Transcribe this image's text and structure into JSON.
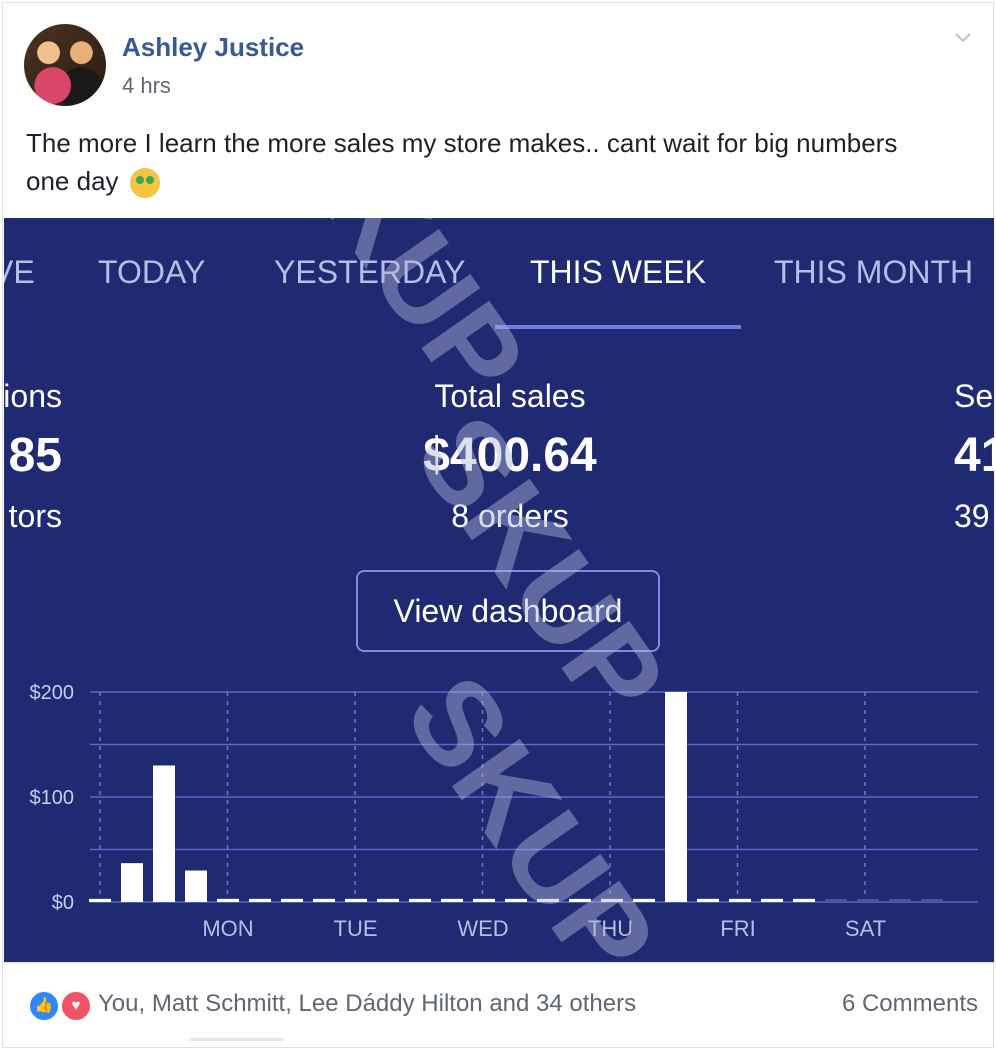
{
  "post": {
    "author": "Ashley Justice",
    "time": "4 hrs",
    "text": "The more I learn the more sales my store makes.. cant wait for big numbers one day",
    "emoji": "money-mouth-face-emoji"
  },
  "screenshot": {
    "tabs": [
      {
        "label": "VE",
        "active": false
      },
      {
        "label": "TODAY",
        "active": false
      },
      {
        "label": "YESTERDAY",
        "active": false
      },
      {
        "label": "THIS WEEK",
        "active": true
      },
      {
        "label": "THIS MONTH",
        "active": false
      }
    ],
    "metrics": {
      "left": {
        "label": "ions",
        "value": "85",
        "sub": "tors"
      },
      "center": {
        "label": "Total sales",
        "value": "$400.64",
        "sub": "8 orders"
      },
      "right": {
        "label": "Se",
        "value": "41",
        "sub": "39"
      }
    },
    "button": "View dashboard"
  },
  "chart_data": {
    "type": "bar",
    "x_labels": [
      "MON",
      "TUE",
      "WED",
      "THU",
      "FRI",
      "SAT"
    ],
    "y_ticks": [
      "$200",
      "$100",
      "$0"
    ],
    "ylim": [
      0,
      200
    ],
    "grid": true,
    "values": [
      3,
      37,
      130,
      30,
      3,
      3,
      3,
      3,
      3,
      3,
      3,
      3,
      3,
      3,
      3,
      3,
      3,
      3,
      200,
      3,
      3,
      3,
      3,
      3,
      3,
      3,
      3
    ],
    "bar_color": "#ffffff",
    "faded_from_index": 23
  },
  "footer": {
    "reactors": "You, Matt Schmitt, Lee Dáddy Hilton and 34 others",
    "comments": "6 Comments"
  },
  "watermark": "SKUP",
  "colors": {
    "author": "#385898",
    "panel_bg": "#1f2a72",
    "accent": "#6f7fe0",
    "like": "#2d88ff",
    "love": "#f25268"
  }
}
